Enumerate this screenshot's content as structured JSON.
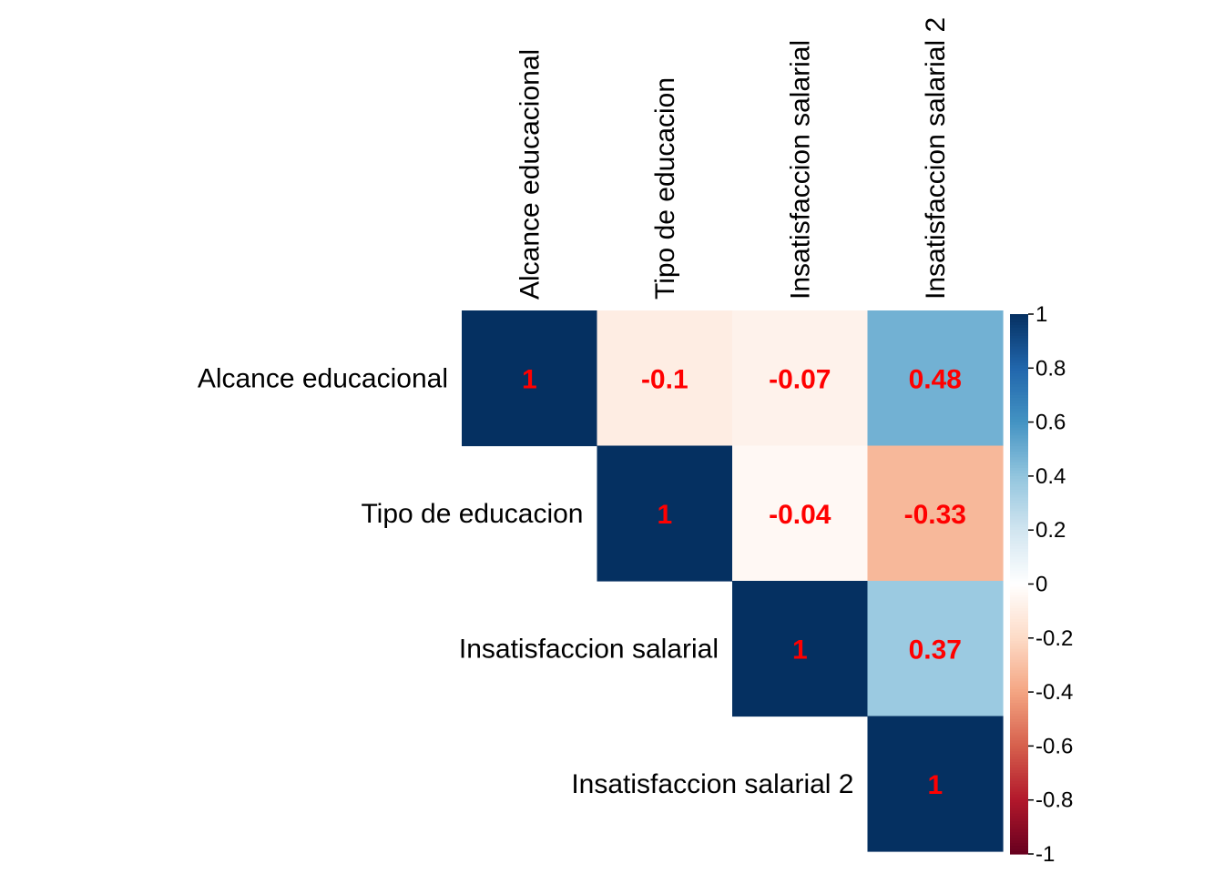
{
  "chart_data": {
    "type": "heatmap",
    "layout": "upper-triangular",
    "variables": [
      "Alcance educacional",
      "Tipo de educacion",
      "Insatisfaccion salarial",
      "Insatisfaccion salarial 2"
    ],
    "matrix": [
      [
        1,
        -0.1,
        -0.07,
        0.48
      ],
      [
        null,
        1,
        -0.04,
        -0.33
      ],
      [
        null,
        null,
        1,
        0.37
      ],
      [
        null,
        null,
        null,
        1
      ]
    ],
    "value_labels": [
      [
        "1",
        "-0.1",
        "-0.07",
        "0.48"
      ],
      [
        null,
        "1",
        "-0.04",
        "-0.33"
      ],
      [
        null,
        null,
        "1",
        "0.37"
      ],
      [
        null,
        null,
        null,
        "1"
      ]
    ],
    "value_label_color": "#FF0000",
    "colorbar": {
      "range": [
        -1,
        1
      ],
      "ticks": [
        1,
        0.8,
        0.6,
        0.4,
        0.2,
        0,
        -0.2,
        -0.4,
        -0.6,
        -0.8,
        -1
      ],
      "tick_labels": [
        "1",
        "0.8",
        "0.6",
        "0.4",
        "0.2",
        "0",
        "-0.2",
        "-0.4",
        "-0.6",
        "-0.8",
        "-1"
      ],
      "position": "right"
    },
    "color_scale": [
      "#67001F",
      "#B2182B",
      "#D6604D",
      "#F4A582",
      "#FDDBC7",
      "#FFFFFF",
      "#D1E5F0",
      "#92C5DE",
      "#4393C3",
      "#2166AC",
      "#053061"
    ],
    "title": "",
    "xlabel": "",
    "ylabel": "",
    "grid": false
  }
}
